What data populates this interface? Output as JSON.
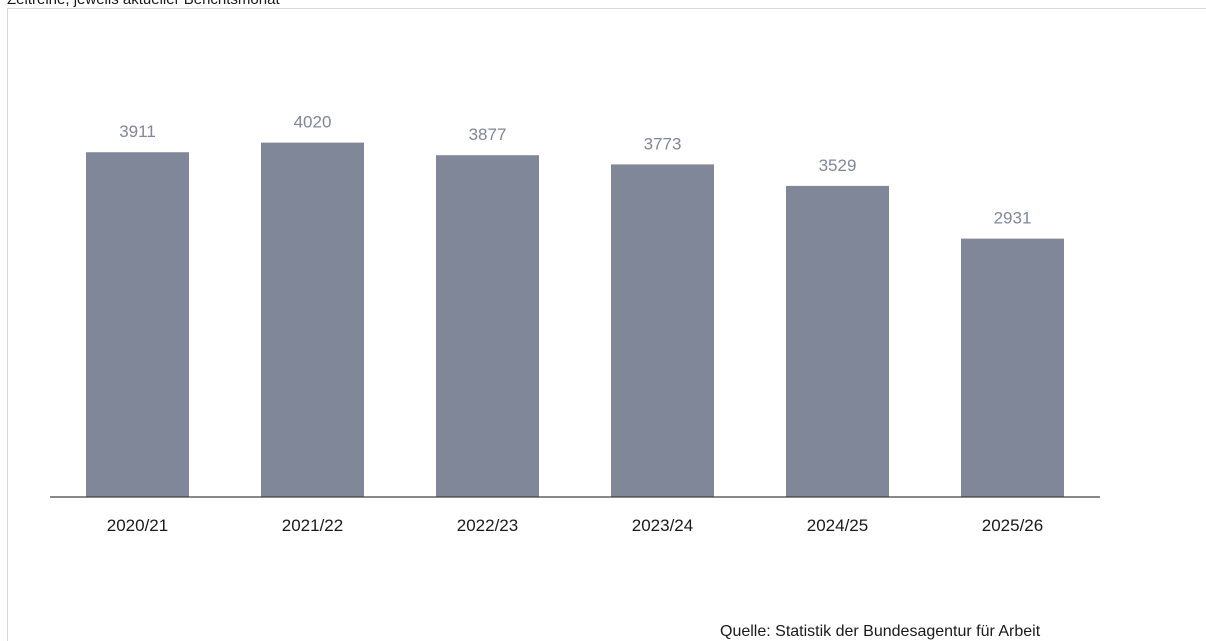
{
  "header": {
    "subtitle": "Zeitreihe, jeweils aktueller Berichtsmonat"
  },
  "footer": {
    "source": "Quelle: Statistik der Bundesagentur für Arbeit"
  },
  "colors": {
    "bar": "#7f8799",
    "value_label": "#7f8799",
    "axis": "#404040",
    "tick_label": "#1a1a1a"
  },
  "chart_data": {
    "type": "bar",
    "categories": [
      "2020/21",
      "2021/22",
      "2022/23",
      "2023/24",
      "2024/25",
      "2025/26"
    ],
    "values": [
      3911,
      4020,
      3877,
      3773,
      3529,
      2931
    ],
    "title": "",
    "xlabel": "",
    "ylabel": "",
    "ylim": [
      0,
      4390
    ],
    "grid": false,
    "legend": "none",
    "data_labels": true
  }
}
